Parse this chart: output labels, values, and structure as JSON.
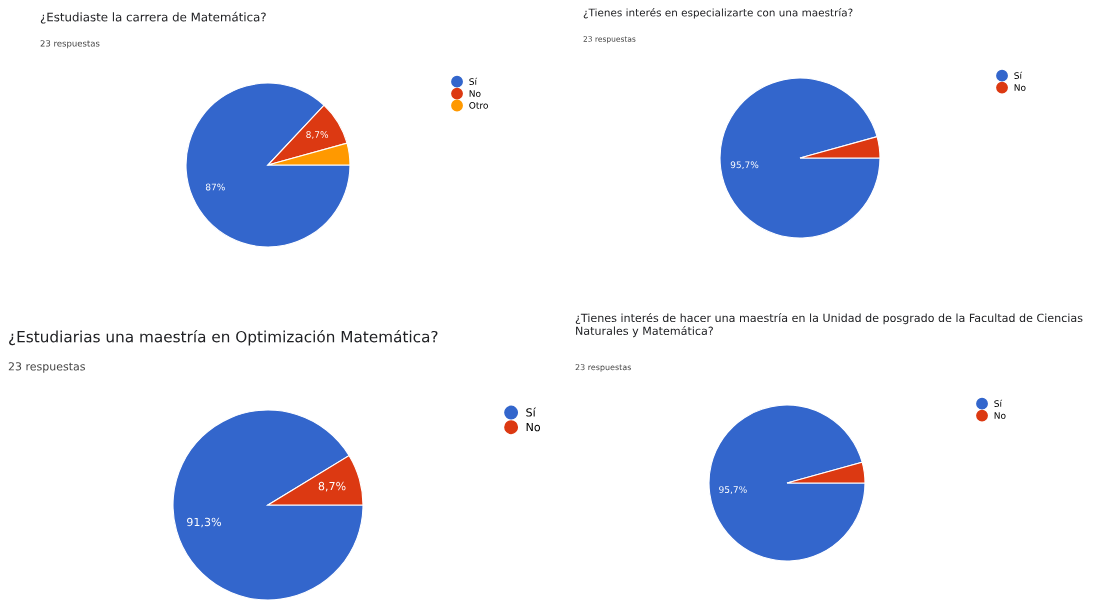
{
  "chart_data": [
    {
      "type": "pie",
      "title": "¿Estudiaste la carrera de Matemática?",
      "subtitle": "23 respuestas",
      "categories": [
        "Sí",
        "No",
        "Otro"
      ],
      "values": [
        87,
        8.7,
        4.3
      ],
      "colors": [
        "#3366cc",
        "#dc3912",
        "#ff9900"
      ],
      "value_labels": [
        "87%",
        "8,7%",
        null
      ],
      "legend": "top right"
    },
    {
      "type": "pie",
      "title": "¿Tienes interés en especializarte con una maestría?",
      "subtitle": "23 respuestas",
      "categories": [
        "Sí",
        "No"
      ],
      "values": [
        95.7,
        4.3
      ],
      "colors": [
        "#3366cc",
        "#dc3912"
      ],
      "value_labels": [
        "95,7%",
        null
      ],
      "legend": "top right"
    },
    {
      "type": "pie",
      "title": "¿Estudiarias una maestría en Optimización Matemática?",
      "subtitle": "23 respuestas",
      "categories": [
        "Sí",
        "No"
      ],
      "values": [
        91.3,
        8.7
      ],
      "colors": [
        "#3366cc",
        "#dc3912"
      ],
      "value_labels": [
        "91,3%",
        "8,7%"
      ],
      "legend": "top right"
    },
    {
      "type": "pie",
      "title": "¿Tienes interés de hacer una maestría en la Unidad de posgrado de la Facultad de Ciencias Naturales y Matemática?",
      "subtitle": "23 respuestas",
      "categories": [
        "Sí",
        "No"
      ],
      "values": [
        95.7,
        4.3
      ],
      "colors": [
        "#3366cc",
        "#dc3912"
      ],
      "value_labels": [
        "95,7%",
        null
      ],
      "legend": "top right"
    }
  ]
}
